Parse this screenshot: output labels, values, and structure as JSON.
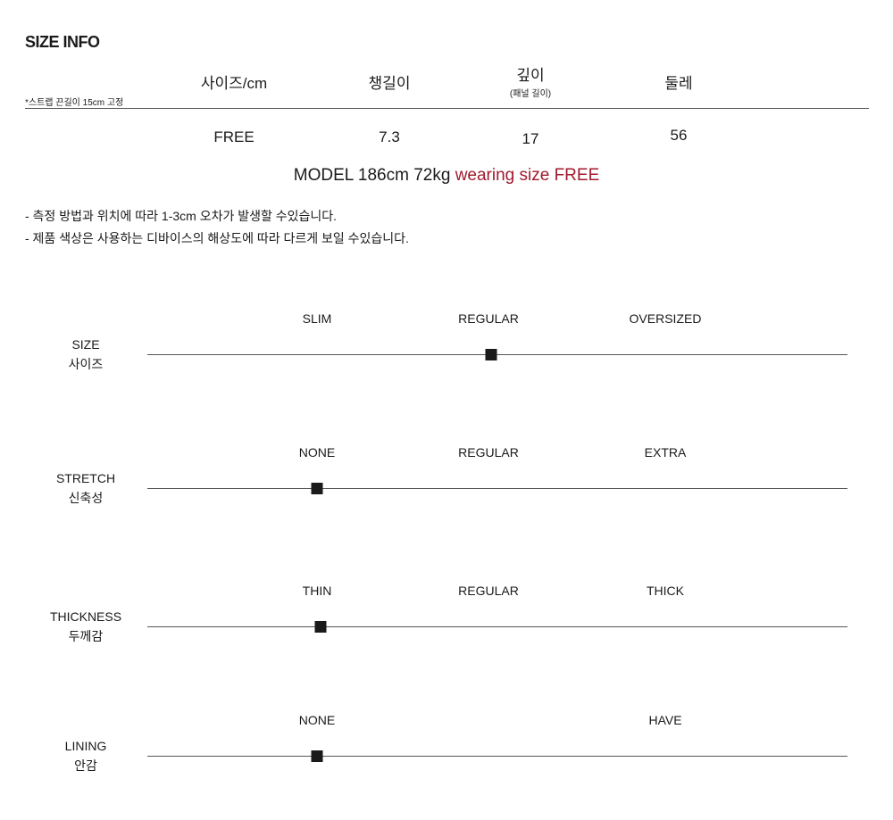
{
  "title": "SIZE INFO",
  "note": "*스트랩 끈길이 15cm 고정",
  "table": {
    "headers": [
      {
        "label": "사이즈/cm",
        "sub": ""
      },
      {
        "label": "챙길이",
        "sub": ""
      },
      {
        "label": "깊이",
        "sub": "(패널 길이)"
      },
      {
        "label": "둘레",
        "sub": ""
      }
    ],
    "row": [
      "FREE",
      "7.3",
      "17",
      "56"
    ]
  },
  "model": {
    "prefix": "MODEL 186cm 72kg",
    "highlight": "wearing size FREE",
    "highlight_color": "#a01a2e"
  },
  "disclaimers": [
    "- 측정 방법과 위치에 따라 1-3cm 오차가 발생할 수있습니다.",
    "- 제품 색상은 사용하는 디바이스의 해상도에 따라 다르게 보일 수있습니다."
  ],
  "scales": [
    {
      "name_en": "SIZE",
      "name_ko": "사이즈",
      "labels": [
        "SLIM",
        "REGULAR",
        "OVERSIZED"
      ],
      "level": 1
    },
    {
      "name_en": "STRETCH",
      "name_ko": "신축성",
      "labels": [
        "NONE",
        "REGULAR",
        "EXTRA"
      ],
      "level": 0
    },
    {
      "name_en": "THICKNESS",
      "name_ko": "두께감",
      "labels": [
        "THIN",
        "REGULAR",
        "THICK"
      ],
      "level": 0.02
    },
    {
      "name_en": "LINING",
      "name_ko": "안감",
      "labels": [
        "NONE",
        "",
        "HAVE"
      ],
      "level": 0
    }
  ]
}
